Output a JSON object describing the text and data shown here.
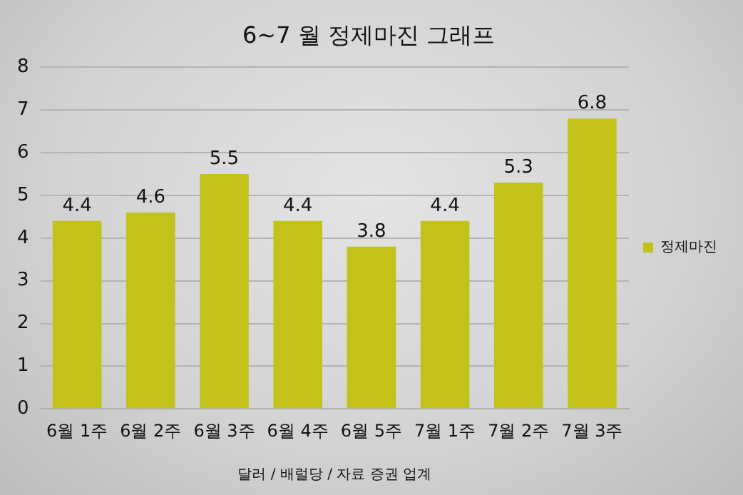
{
  "chart_data": {
    "type": "bar",
    "title": "6~7 월 정제마진 그래프",
    "xlabel": "달러 / 배럴당 / 자료 증권 업계",
    "categories": [
      "6월 1주",
      "6월 2주",
      "6월 3주",
      "6월 4주",
      "6월 5주",
      "7월 1주",
      "7월 2주",
      "7월 3주"
    ],
    "series": [
      {
        "name": "정제마진",
        "color": "#c2c21a",
        "values": [
          4.4,
          4.6,
          5.5,
          4.4,
          3.8,
          4.4,
          5.3,
          6.8
        ]
      }
    ],
    "ylim": [
      0,
      8
    ],
    "yticks": [
      0,
      1,
      2,
      3,
      4,
      5,
      6,
      7,
      8
    ],
    "grid": "y",
    "legend": "right",
    "data_labels": true
  }
}
